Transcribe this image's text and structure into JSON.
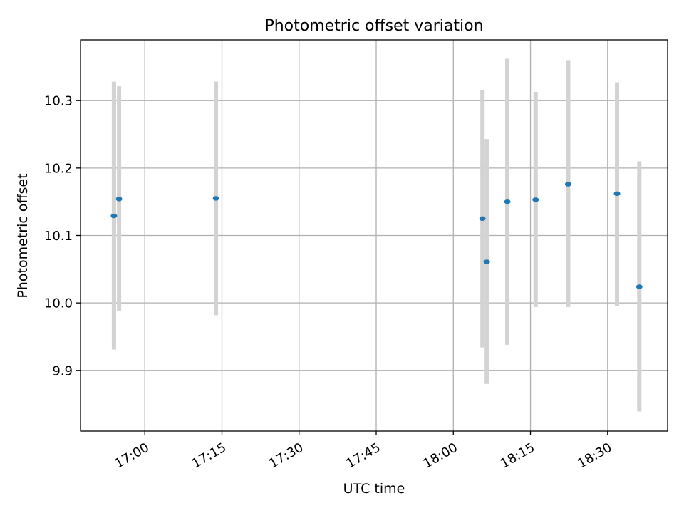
{
  "chart_data": {
    "type": "scatter",
    "title": "Photometric offset variation",
    "xlabel": "UTC time",
    "ylabel": "Photometric offset",
    "x_tick_labels": [
      "17:00",
      "17:15",
      "17:30",
      "17:45",
      "18:00",
      "18:15",
      "18:30"
    ],
    "x_tick_values": [
      "17:00",
      "17:15",
      "17:30",
      "17:45",
      "18:00",
      "18:15",
      "18:30"
    ],
    "y_tick_labels": [
      "9.9",
      "10.0",
      "10.1",
      "10.2",
      "10.3"
    ],
    "y_tick_values": [
      9.9,
      10.0,
      10.1,
      10.2,
      10.3
    ],
    "xlim": [
      "16:47:30",
      "18:41:40"
    ],
    "ylim": [
      9.81,
      10.39
    ],
    "grid": true,
    "points": [
      {
        "x": "16:54:00",
        "y": 10.129,
        "yerr_low": 9.931,
        "yerr_high": 10.328
      },
      {
        "x": "16:55:00",
        "y": 10.154,
        "yerr_low": 9.988,
        "yerr_high": 10.321
      },
      {
        "x": "17:13:50",
        "y": 10.155,
        "yerr_low": 9.982,
        "yerr_high": 10.328
      },
      {
        "x": "18:05:40",
        "y": 10.125,
        "yerr_low": 9.934,
        "yerr_high": 10.316
      },
      {
        "x": "18:06:30",
        "y": 10.061,
        "yerr_low": 9.88,
        "yerr_high": 10.243
      },
      {
        "x": "18:10:30",
        "y": 10.15,
        "yerr_low": 9.938,
        "yerr_high": 10.362
      },
      {
        "x": "18:16:00",
        "y": 10.153,
        "yerr_low": 9.994,
        "yerr_high": 10.313
      },
      {
        "x": "18:22:20",
        "y": 10.176,
        "yerr_low": 9.994,
        "yerr_high": 10.36
      },
      {
        "x": "18:31:50",
        "y": 10.162,
        "yerr_low": 9.995,
        "yerr_high": 10.327
      },
      {
        "x": "18:36:10",
        "y": 10.024,
        "yerr_low": 9.839,
        "yerr_high": 10.21
      }
    ],
    "colors": {
      "marker": "#1f77b4",
      "errorbar": "#d3d3d3",
      "grid": "#b0b0b0",
      "axes": "#000000"
    }
  }
}
